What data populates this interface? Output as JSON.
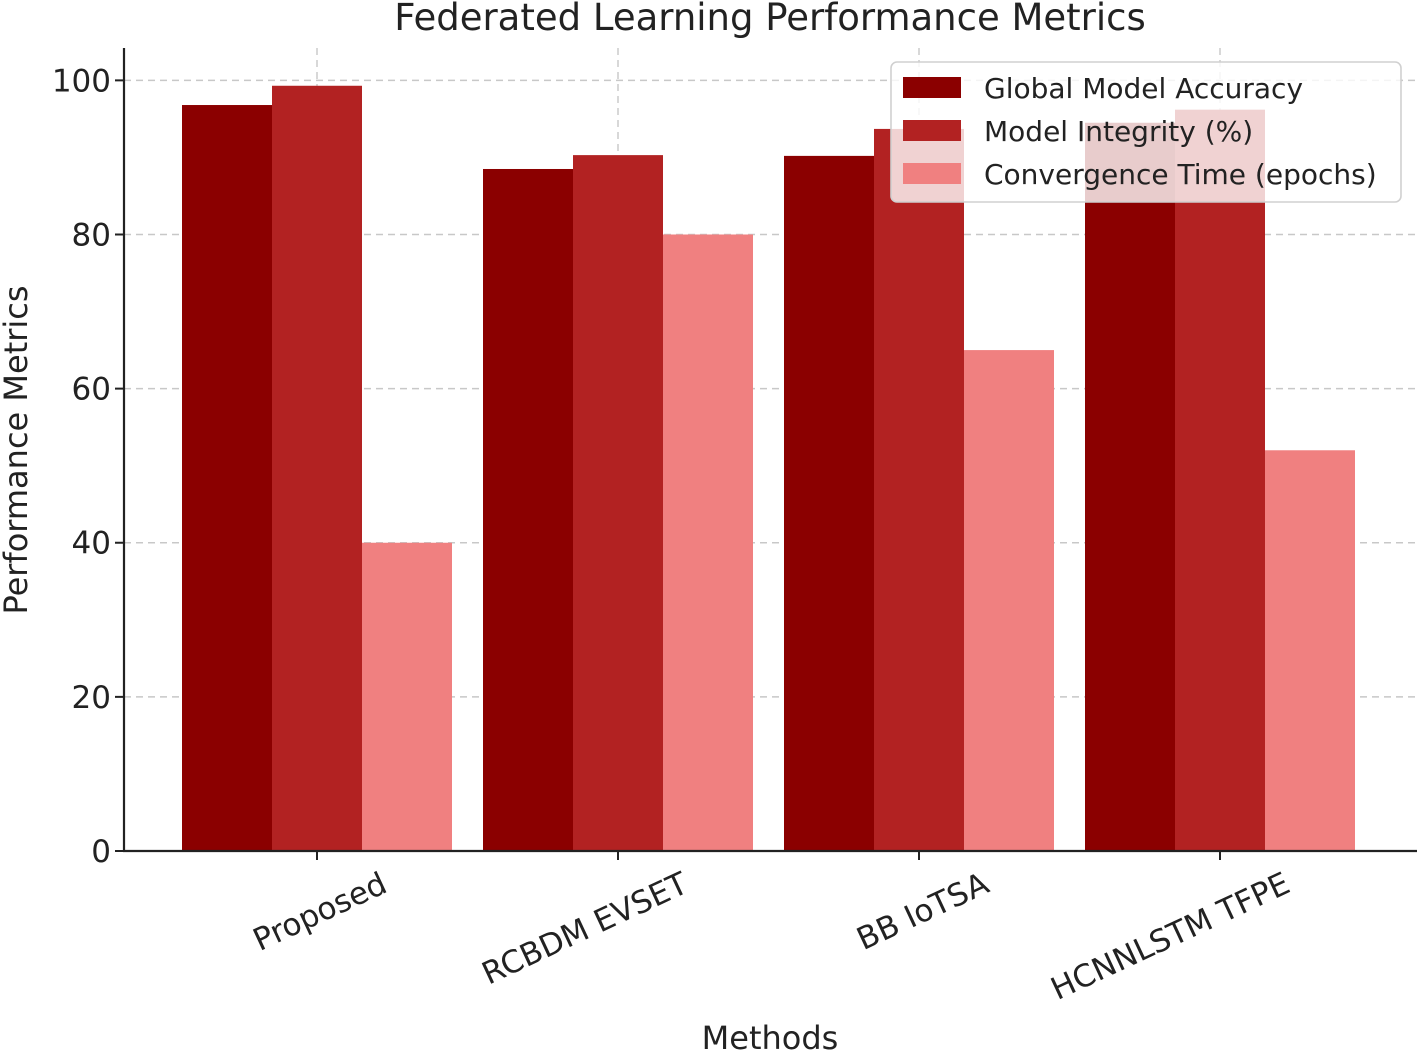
{
  "chart_data": {
    "type": "bar",
    "title": "Federated Learning Performance Metrics",
    "xlabel": "Methods",
    "ylabel": "Performance Metrics",
    "categories": [
      "Proposed",
      "RCBDM EVSET",
      "BB IoTSA",
      "HCNNLSTM TFPE"
    ],
    "series": [
      {
        "name": "Global Model Accuracy",
        "color": "#8b0000",
        "values": [
          96.8,
          88.5,
          90.2,
          94.5
        ]
      },
      {
        "name": "Model Integrity (%)",
        "color": "#b22222",
        "values": [
          99.3,
          90.3,
          93.7,
          96.2
        ]
      },
      {
        "name": "Convergence Time (epochs)",
        "color": "#f08080",
        "values": [
          40,
          80,
          65,
          52
        ]
      }
    ],
    "yticks": [
      0,
      20,
      40,
      60,
      80,
      100
    ],
    "ylim": [
      0,
      104.2
    ],
    "grid": true,
    "legend_position": "top-right"
  }
}
